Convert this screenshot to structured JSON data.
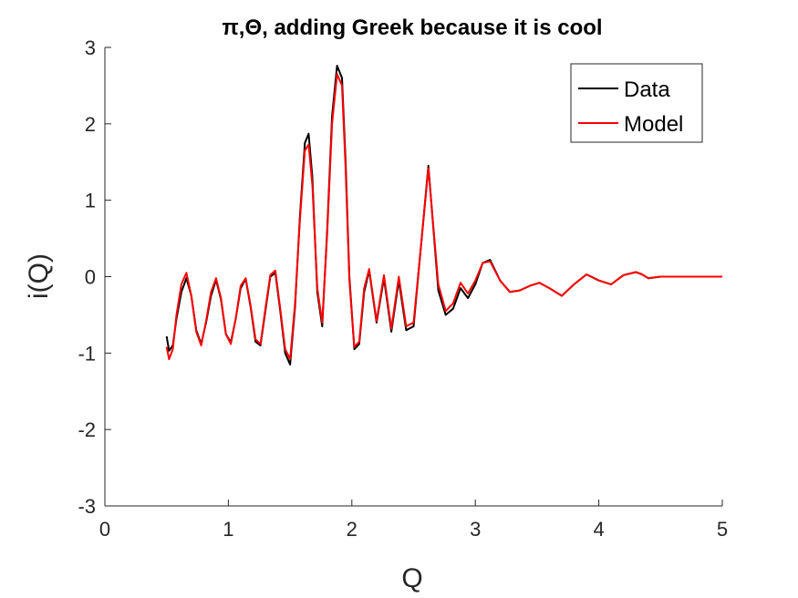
{
  "chart_data": {
    "type": "line",
    "title": "π,Θ, adding Greek because it is cool",
    "xlabel": "Q",
    "ylabel": "i(Q)",
    "xlim": [
      0,
      5
    ],
    "ylim": [
      -3,
      3
    ],
    "x_ticks": [
      "0",
      "1",
      "2",
      "3",
      "4",
      "5"
    ],
    "y_ticks": [
      "-3",
      "-2",
      "-1",
      "0",
      "1",
      "2",
      "3"
    ],
    "grid": false,
    "legend_position": "top-right",
    "x": [
      0.5,
      0.52,
      0.55,
      0.58,
      0.62,
      0.66,
      0.7,
      0.74,
      0.78,
      0.82,
      0.86,
      0.9,
      0.94,
      0.98,
      1.02,
      1.06,
      1.1,
      1.14,
      1.18,
      1.22,
      1.26,
      1.3,
      1.34,
      1.38,
      1.42,
      1.46,
      1.5,
      1.54,
      1.58,
      1.62,
      1.65,
      1.68,
      1.72,
      1.76,
      1.8,
      1.84,
      1.88,
      1.92,
      1.95,
      1.98,
      2.02,
      2.06,
      2.1,
      2.14,
      2.2,
      2.26,
      2.32,
      2.38,
      2.44,
      2.5,
      2.56,
      2.62,
      2.7,
      2.76,
      2.82,
      2.88,
      2.94,
      3.0,
      3.06,
      3.12,
      3.2,
      3.28,
      3.36,
      3.44,
      3.52,
      3.6,
      3.7,
      3.8,
      3.9,
      4.0,
      4.1,
      4.2,
      4.3,
      4.35,
      4.4,
      4.5,
      4.6,
      4.7,
      4.8,
      4.9,
      5.0
    ],
    "series": [
      {
        "name": "Data",
        "color": "#000000",
        "values": [
          -0.78,
          -0.97,
          -0.9,
          -0.55,
          -0.2,
          -0.02,
          -0.25,
          -0.7,
          -0.88,
          -0.6,
          -0.25,
          -0.04,
          -0.3,
          -0.75,
          -0.86,
          -0.55,
          -0.15,
          -0.03,
          -0.4,
          -0.85,
          -0.9,
          -0.45,
          0.0,
          0.05,
          -0.45,
          -1.0,
          -1.15,
          -0.4,
          0.8,
          1.75,
          1.87,
          1.3,
          -0.2,
          -0.65,
          0.6,
          2.1,
          2.76,
          2.6,
          1.5,
          0.0,
          -0.95,
          -0.88,
          -0.2,
          0.08,
          -0.6,
          -0.02,
          -0.72,
          -0.05,
          -0.7,
          -0.65,
          0.4,
          1.45,
          -0.18,
          -0.5,
          -0.42,
          -0.15,
          -0.28,
          -0.1,
          0.18,
          0.22,
          -0.05,
          -0.2,
          -0.18,
          -0.12,
          -0.08,
          -0.15,
          -0.25,
          -0.1,
          0.03,
          -0.05,
          -0.1,
          0.02,
          0.06,
          0.03,
          -0.02,
          0.0,
          0.0,
          0.0,
          0.0,
          0.0,
          0.0
        ]
      },
      {
        "name": "Model",
        "color": "#ff0000",
        "values": [
          -0.92,
          -1.08,
          -0.95,
          -0.5,
          -0.1,
          0.05,
          -0.25,
          -0.72,
          -0.9,
          -0.58,
          -0.2,
          -0.02,
          -0.28,
          -0.75,
          -0.88,
          -0.55,
          -0.12,
          -0.02,
          -0.38,
          -0.82,
          -0.88,
          -0.42,
          0.02,
          0.08,
          -0.42,
          -0.95,
          -1.08,
          -0.35,
          0.75,
          1.65,
          1.73,
          1.2,
          -0.15,
          -0.6,
          0.55,
          2.0,
          2.65,
          2.5,
          1.4,
          -0.05,
          -0.92,
          -0.85,
          -0.15,
          0.1,
          -0.58,
          0.02,
          -0.68,
          0.0,
          -0.65,
          -0.6,
          0.4,
          1.42,
          -0.1,
          -0.45,
          -0.35,
          -0.08,
          -0.22,
          -0.05,
          0.18,
          0.2,
          -0.05,
          -0.2,
          -0.18,
          -0.12,
          -0.08,
          -0.15,
          -0.25,
          -0.1,
          0.03,
          -0.05,
          -0.1,
          0.02,
          0.06,
          0.03,
          -0.02,
          0.0,
          0.0,
          0.0,
          0.0,
          0.0,
          0.0
        ]
      }
    ]
  }
}
